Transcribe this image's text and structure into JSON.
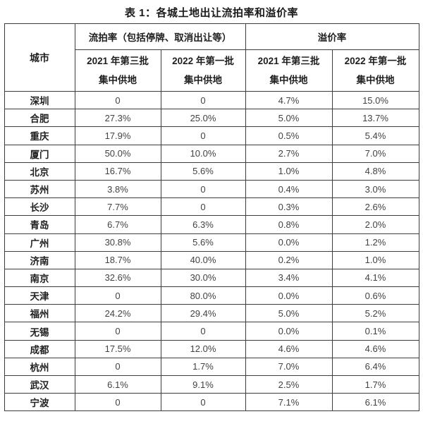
{
  "title": "表 1：各城土地出让流拍率和溢价率",
  "colors": {
    "background": "#ffffff",
    "border": "#3d3d3d",
    "header_text": "#1f1f1f",
    "data_text": "#424242"
  },
  "chart_data": {
    "type": "table",
    "title": "表 1：各城土地出让流拍率和溢价率",
    "header": {
      "city": "城市",
      "groups": [
        {
          "label": "流拍率（包括停牌、取消出让等）",
          "span": 2
        },
        {
          "label": "溢价率",
          "span": 2
        }
      ],
      "sub_columns": [
        "2021 年第三批\n集中供地",
        "2022 年第一批\n集中供地",
        "2021 年第三批\n集中供地",
        "2022 年第一批\n集中供地"
      ]
    },
    "rows": [
      {
        "city": "深圳",
        "values": [
          "0",
          "0",
          "4.7%",
          "15.0%"
        ]
      },
      {
        "city": "合肥",
        "values": [
          "27.3%",
          "25.0%",
          "5.0%",
          "13.7%"
        ]
      },
      {
        "city": "重庆",
        "values": [
          "17.9%",
          "0",
          "0.5%",
          "5.4%"
        ]
      },
      {
        "city": "厦门",
        "values": [
          "50.0%",
          "10.0%",
          "2.7%",
          "7.0%"
        ]
      },
      {
        "city": "北京",
        "values": [
          "16.7%",
          "5.6%",
          "1.0%",
          "4.8%"
        ]
      },
      {
        "city": "苏州",
        "values": [
          "3.8%",
          "0",
          "0.4%",
          "3.0%"
        ]
      },
      {
        "city": "长沙",
        "values": [
          "7.7%",
          "0",
          "0.3%",
          "2.6%"
        ]
      },
      {
        "city": "青岛",
        "values": [
          "6.7%",
          "6.3%",
          "0.8%",
          "2.0%"
        ]
      },
      {
        "city": "广州",
        "values": [
          "30.8%",
          "5.6%",
          "0.0%",
          "1.2%"
        ]
      },
      {
        "city": "济南",
        "values": [
          "18.7%",
          "40.0%",
          "0.2%",
          "1.0%"
        ]
      },
      {
        "city": "南京",
        "values": [
          "32.6%",
          "30.0%",
          "3.4%",
          "4.1%"
        ]
      },
      {
        "city": "天津",
        "values": [
          "0",
          "80.0%",
          "0.0%",
          "0.6%"
        ]
      },
      {
        "city": "福州",
        "values": [
          "24.2%",
          "29.4%",
          "5.0%",
          "5.2%"
        ]
      },
      {
        "city": "无锡",
        "values": [
          "0",
          "0",
          "0.0%",
          "0.1%"
        ]
      },
      {
        "city": "成都",
        "values": [
          "17.5%",
          "12.0%",
          "4.6%",
          "4.6%"
        ]
      },
      {
        "city": "杭州",
        "values": [
          "0",
          "1.7%",
          "7.0%",
          "6.4%"
        ]
      },
      {
        "city": "武汉",
        "values": [
          "6.1%",
          "9.1%",
          "2.5%",
          "1.7%"
        ]
      },
      {
        "city": "宁波",
        "values": [
          "0",
          "0",
          "7.1%",
          "6.1%"
        ]
      }
    ]
  }
}
